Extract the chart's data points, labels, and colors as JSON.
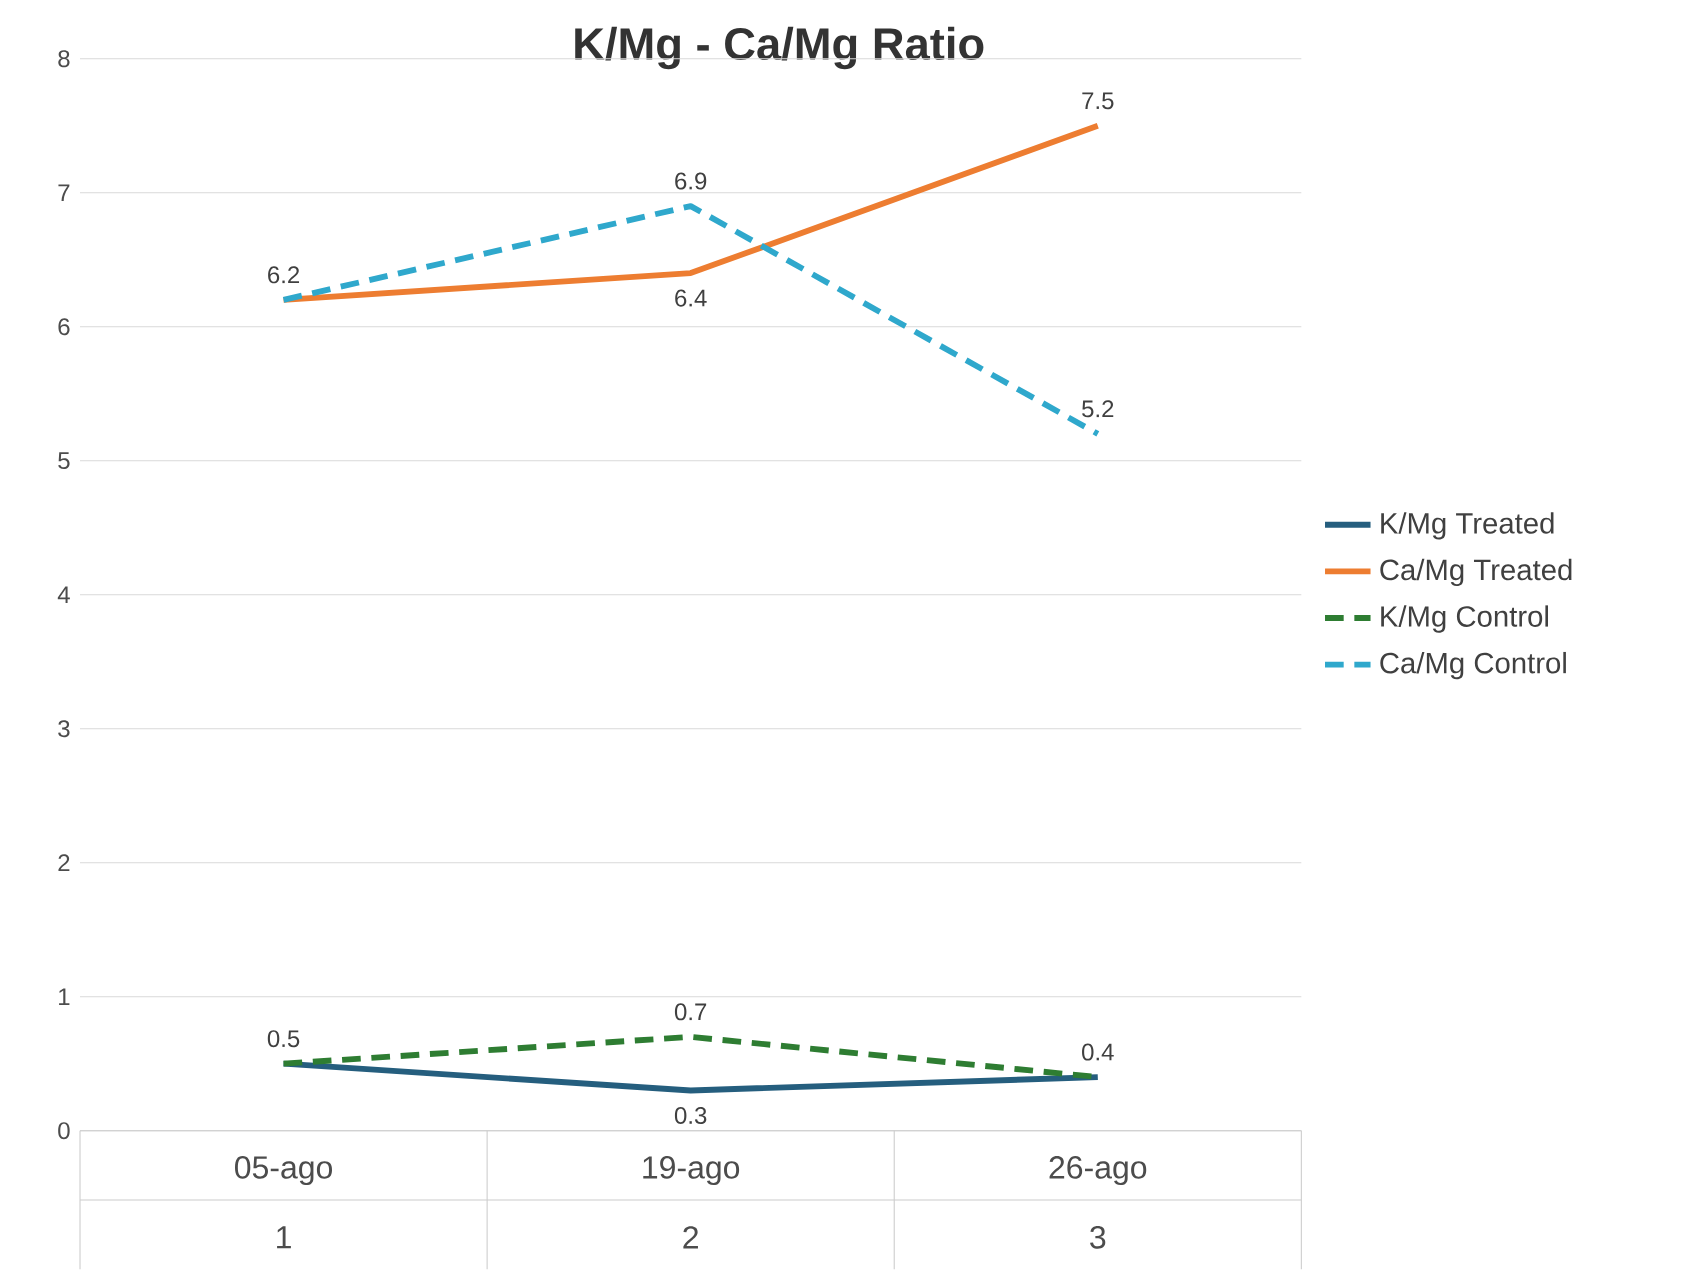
{
  "chart_data": {
    "type": "line",
    "title": "K/Mg - Ca/Mg Ratio",
    "categories": [
      "05-ago",
      "19-ago",
      "26-ago"
    ],
    "annotations": [
      "1",
      "2",
      "3"
    ],
    "series": [
      {
        "name": "K/Mg Treated",
        "color": "#255e7e",
        "line_style": "solid",
        "values": [
          0.5,
          0.3,
          0.4
        ],
        "value_labels": [
          "0.5",
          "0.3",
          "0.4"
        ]
      },
      {
        "name": "Ca/Mg Treated",
        "color": "#ed7d31",
        "line_style": "solid",
        "values": [
          6.2,
          6.4,
          7.5
        ],
        "value_labels": [
          "6.2",
          "6.4",
          "7.5"
        ]
      },
      {
        "name": "K/Mg Control",
        "color": "#2e7d32",
        "line_style": "dashed",
        "values": [
          0.5,
          0.7,
          0.4
        ],
        "value_labels": [
          null,
          "0.7",
          null
        ]
      },
      {
        "name": "Ca/Mg Control",
        "color": "#2fa8cc",
        "line_style": "dashed",
        "values": [
          6.2,
          6.9,
          5.2
        ],
        "value_labels": [
          null,
          "6.9",
          "5.2"
        ]
      }
    ],
    "ylim": [
      0,
      8
    ],
    "yticks": [
      0,
      1,
      2,
      3,
      4,
      5,
      6,
      7,
      8
    ],
    "grid": "y",
    "legend": "right",
    "marker": "none"
  }
}
